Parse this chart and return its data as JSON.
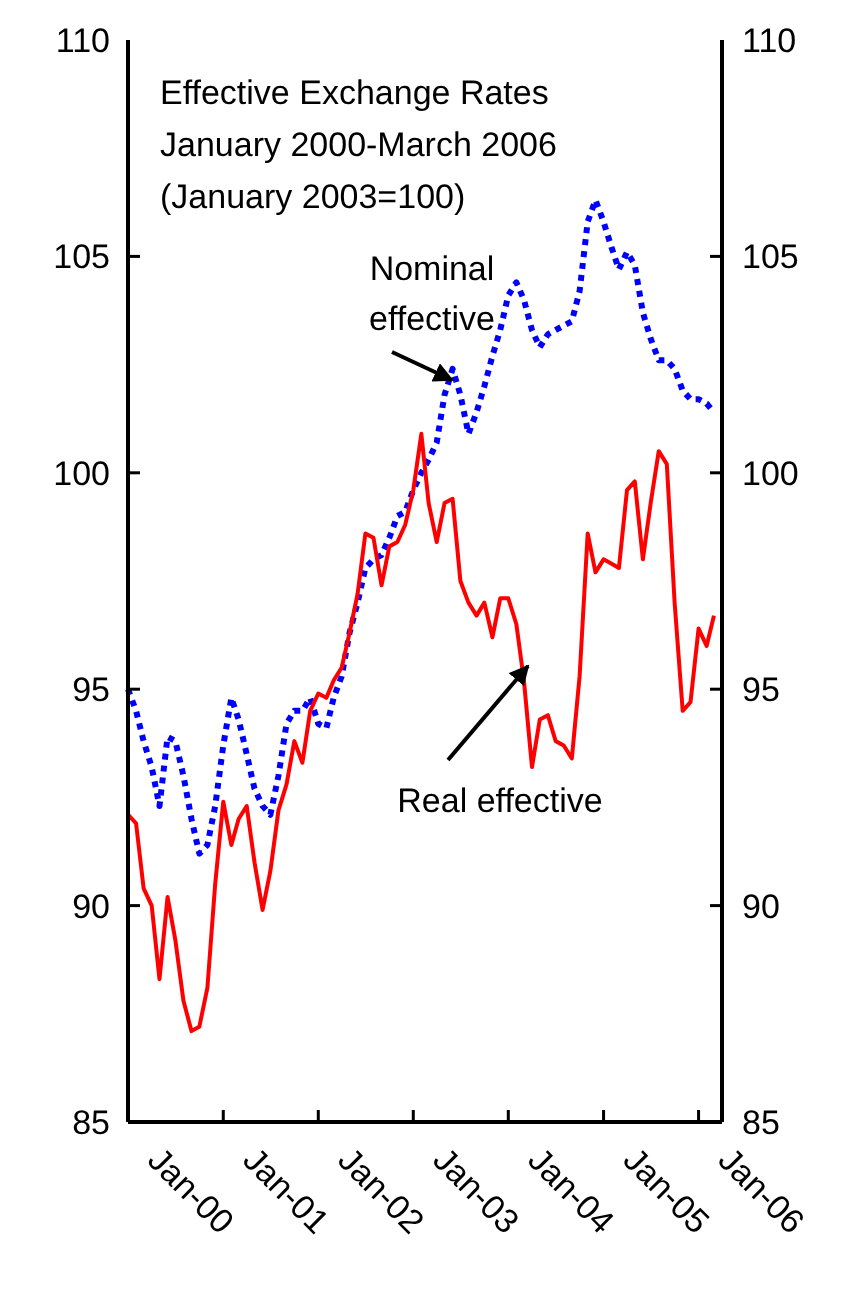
{
  "chart_data": {
    "type": "line",
    "title": "Effective Exchange Rates",
    "subtitle": "January 2000-March 2006",
    "annotations": [
      "(January 2003=100)"
    ],
    "x": [
      "2000-01",
      "2000-02",
      "2000-03",
      "2000-04",
      "2000-05",
      "2000-06",
      "2000-07",
      "2000-08",
      "2000-09",
      "2000-10",
      "2000-11",
      "2000-12",
      "2001-01",
      "2001-02",
      "2001-03",
      "2001-04",
      "2001-05",
      "2001-06",
      "2001-07",
      "2001-08",
      "2001-09",
      "2001-10",
      "2001-11",
      "2001-12",
      "2002-01",
      "2002-02",
      "2002-03",
      "2002-04",
      "2002-05",
      "2002-06",
      "2002-07",
      "2002-08",
      "2002-09",
      "2002-10",
      "2002-11",
      "2002-12",
      "2003-01",
      "2003-02",
      "2003-03",
      "2003-04",
      "2003-05",
      "2003-06",
      "2003-07",
      "2003-08",
      "2003-09",
      "2003-10",
      "2003-11",
      "2003-12",
      "2004-01",
      "2004-02",
      "2004-03",
      "2004-04",
      "2004-05",
      "2004-06",
      "2004-07",
      "2004-08",
      "2004-09",
      "2004-10",
      "2004-11",
      "2004-12",
      "2005-01",
      "2005-02",
      "2005-03",
      "2005-04",
      "2005-05",
      "2005-06",
      "2005-07",
      "2005-08",
      "2005-09",
      "2005-10",
      "2005-11",
      "2005-12",
      "2006-01",
      "2006-02",
      "2006-03"
    ],
    "series": [
      {
        "name": "Nominal effective",
        "color": "#0000ff",
        "line_style": "dotted",
        "values": [
          95.0,
          94.5,
          93.8,
          93.2,
          92.3,
          93.9,
          93.8,
          93.0,
          92.0,
          91.2,
          91.4,
          92.3,
          93.7,
          94.8,
          94.3,
          93.5,
          92.7,
          92.3,
          92.1,
          93.0,
          94.2,
          94.5,
          94.5,
          94.8,
          94.2,
          94.1,
          94.8,
          95.3,
          96.3,
          97.0,
          97.8,
          98.0,
          98.1,
          98.5,
          99.0,
          99.1,
          99.6,
          100.0,
          100.3,
          100.7,
          101.8,
          102.4,
          101.8,
          100.9,
          101.4,
          102.0,
          102.7,
          103.3,
          104.1,
          104.4,
          104.0,
          103.3,
          102.9,
          103.2,
          103.3,
          103.4,
          103.5,
          104.2,
          105.8,
          106.3,
          105.8,
          105.2,
          104.7,
          105.1,
          104.8,
          103.7,
          103.1,
          102.6,
          102.6,
          102.4,
          101.9,
          101.7,
          101.7,
          101.6,
          101.4
        ]
      },
      {
        "name": "Real effective",
        "color": "#ff0000",
        "line_style": "solid",
        "values": [
          92.1,
          91.9,
          90.4,
          90.0,
          88.3,
          90.2,
          89.2,
          87.8,
          87.1,
          87.2,
          88.1,
          90.5,
          92.4,
          91.4,
          92.0,
          92.3,
          91.0,
          89.9,
          90.8,
          92.2,
          92.8,
          93.8,
          93.3,
          94.5,
          94.9,
          94.8,
          95.2,
          95.5,
          96.3,
          97.2,
          98.6,
          98.5,
          97.4,
          98.3,
          98.4,
          98.8,
          99.6,
          100.9,
          99.3,
          98.4,
          99.3,
          99.4,
          97.5,
          97.0,
          96.7,
          97.0,
          96.2,
          97.1,
          97.1,
          96.5,
          95.2,
          93.2,
          94.3,
          94.4,
          93.8,
          93.7,
          93.4,
          95.3,
          98.6,
          97.7,
          98.0,
          97.9,
          97.8,
          99.6,
          99.8,
          98.0,
          99.3,
          100.5,
          100.2,
          97.0,
          94.5,
          94.7,
          96.4,
          96.0,
          96.7
        ]
      }
    ],
    "xlim": [
      "2000-01",
      "2006-04"
    ],
    "xticks": [
      {
        "value": "2000-01",
        "label": "Jan-00"
      },
      {
        "value": "2001-01",
        "label": "Jan-01"
      },
      {
        "value": "2002-01",
        "label": "Jan-02"
      },
      {
        "value": "2003-01",
        "label": "Jan-03"
      },
      {
        "value": "2004-01",
        "label": "Jan-04"
      },
      {
        "value": "2005-01",
        "label": "Jan-05"
      },
      {
        "value": "2006-01",
        "label": "Jan-06"
      }
    ],
    "ylim": [
      85,
      110
    ],
    "yticks": [
      85,
      90,
      95,
      100,
      105,
      110
    ],
    "y2lim": [
      85,
      110
    ],
    "y2ticks": [
      85,
      90,
      95,
      100,
      105,
      110
    ],
    "grid": false,
    "marker": "none"
  }
}
